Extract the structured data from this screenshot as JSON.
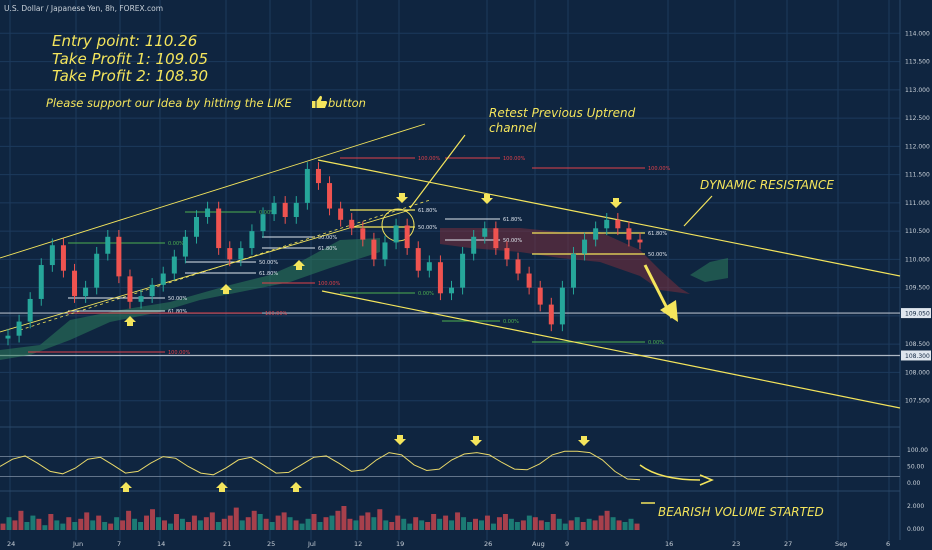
{
  "header": {
    "symbol_label": "U.S. Dollar / Japanese Yen, 8h, FOREX.com"
  },
  "annotations": {
    "entry": "Entry point: 110.26",
    "tp1": "Take Profit 1: 109.05",
    "tp2": "Take Profit 2: 108.30",
    "support": "Please support our Idea by hitting the LIKE",
    "support_suffix": "button",
    "retest_line1": "Retest Previous Uptrend",
    "retest_line2": "channel",
    "dynamic_resistance": "DYNAMIC RESISTANCE",
    "bearish_volume": "BEARISH VOLUME STARTED"
  },
  "chart_data": [
    {
      "type": "candlestick",
      "symbol": "USDJPY",
      "timeframe": "8h",
      "y_axis": {
        "ticks": [
          "114.000",
          "113.500",
          "113.000",
          "112.500",
          "112.000",
          "111.500",
          "111.000",
          "110.500",
          "110.000",
          "109.500",
          "109.000",
          "108.500",
          "108.000",
          "107.500"
        ],
        "range": [
          107.3,
          114.2
        ]
      },
      "x_axis": {
        "ticks": [
          "24",
          "Jun",
          "7",
          "14",
          "21",
          "25",
          "Jul",
          "12",
          "19",
          "26",
          "Aug",
          "9",
          "16",
          "23",
          "27",
          "Sep",
          "6"
        ]
      },
      "price_labels": [
        {
          "value": "109.050",
          "price": 109.05
        },
        {
          "value": "108.300",
          "price": 108.3
        }
      ],
      "close_path": [
        108.65,
        108.9,
        109.3,
        109.9,
        110.25,
        109.8,
        109.35,
        109.5,
        110.1,
        110.4,
        109.7,
        109.25,
        109.35,
        109.55,
        109.75,
        110.05,
        110.4,
        110.75,
        110.9,
        110.2,
        110.0,
        110.2,
        110.5,
        110.8,
        111.0,
        110.75,
        111.0,
        111.6,
        111.35,
        110.9,
        110.7,
        110.55,
        110.35,
        110.0,
        110.3,
        110.6,
        110.2,
        109.8,
        109.95,
        109.4,
        109.5,
        110.1,
        110.4,
        110.55,
        110.2,
        110.0,
        109.75,
        109.5,
        109.2,
        108.85,
        109.5,
        110.1,
        110.35,
        110.55,
        110.7,
        110.55,
        110.35,
        110.3
      ],
      "fib_levels": [
        "100.00%",
        "61.80%",
        "50.00%",
        "0.00%"
      ]
    },
    {
      "type": "line",
      "name": "oscillator",
      "y_ticks": [
        "100.00",
        "50.00",
        "0.00"
      ],
      "values": [
        50,
        72,
        82,
        60,
        35,
        28,
        45,
        72,
        78,
        55,
        30,
        35,
        60,
        80,
        75,
        50,
        30,
        25,
        45,
        70,
        78,
        55,
        30,
        32,
        55,
        78,
        82,
        60,
        35,
        40,
        70,
        92,
        85,
        55,
        38,
        42,
        70,
        88,
        92,
        85,
        62,
        42,
        40,
        58,
        85,
        96,
        96,
        92,
        70,
        35,
        12,
        10
      ]
    },
    {
      "type": "bar",
      "name": "volume",
      "y_ticks": [
        "2.000",
        "0.000"
      ],
      "values": [
        0.4,
        0.8,
        0.6,
        1.2,
        0.5,
        0.9,
        0.7,
        0.3,
        1.0,
        0.6,
        0.4,
        0.8,
        0.5,
        0.7,
        1.1,
        0.6,
        0.9,
        0.5,
        0.4,
        0.8,
        0.6,
        1.2,
        0.7,
        0.5,
        0.9,
        1.3,
        0.8,
        0.6,
        0.4,
        1.0,
        0.7,
        0.5,
        0.9,
        0.6,
        0.8,
        1.1,
        0.5,
        0.7,
        0.9,
        1.4,
        0.6,
        0.8,
        1.2,
        1.0,
        0.7,
        0.5,
        0.9,
        1.1,
        0.8,
        0.6,
        0.4,
        0.7,
        1.0,
        0.5,
        0.8,
        0.9,
        1.2,
        1.5,
        0.7,
        0.6,
        0.9,
        1.1,
        0.8,
        1.3,
        0.6,
        0.5,
        0.9,
        0.7,
        0.4,
        0.8,
        0.6,
        0.5,
        1.0,
        0.7,
        0.9,
        0.6,
        1.1,
        0.8,
        0.5,
        0.7,
        0.6,
        0.9,
        0.4,
        0.8,
        1.0,
        0.7,
        0.5,
        0.6,
        0.9,
        0.8,
        0.6,
        0.5,
        1.0,
        0.7,
        0.4,
        0.6,
        0.8,
        0.5,
        0.7,
        0.6,
        0.9,
        1.2,
        0.8,
        0.6,
        0.5,
        0.7,
        0.4
      ],
      "bearish_flags": [
        1,
        0,
        1,
        1,
        0,
        0,
        1,
        0,
        1,
        0,
        0,
        1,
        0,
        1,
        1,
        0,
        1,
        0,
        1,
        0,
        1,
        1,
        0,
        0,
        1,
        1,
        0,
        1,
        0,
        1,
        0,
        1,
        1,
        0,
        1,
        1,
        0,
        1,
        1,
        1,
        0,
        1,
        1,
        0,
        1,
        0,
        1,
        1,
        0,
        1,
        0,
        0,
        1,
        0,
        1,
        0,
        1,
        1,
        1,
        0,
        1,
        1,
        0,
        1,
        0,
        1,
        1,
        0,
        0,
        1,
        0,
        1,
        1,
        0,
        1,
        0,
        1,
        0,
        0,
        1,
        0,
        1,
        0,
        1,
        1,
        0,
        0,
        1,
        0,
        1,
        1,
        0,
        1,
        0,
        0,
        1,
        0,
        1,
        0,
        1,
        1,
        1,
        0,
        1,
        0,
        0,
        1
      ]
    }
  ],
  "colors": {
    "bg": "#0f2540",
    "grid": "#1c3a5c",
    "axis_text": "#c9d1d9",
    "yellow": "#f4e55c",
    "bull": "#26a69a",
    "bear": "#ef5350",
    "red_line": "#e0414a",
    "green_line": "#4caf50",
    "white_line": "#dfe6ee",
    "osc": "#e8d86a"
  },
  "icons": [
    "arrow-down-icon",
    "arrow-up-icon",
    "thumbs-up-icon"
  ]
}
